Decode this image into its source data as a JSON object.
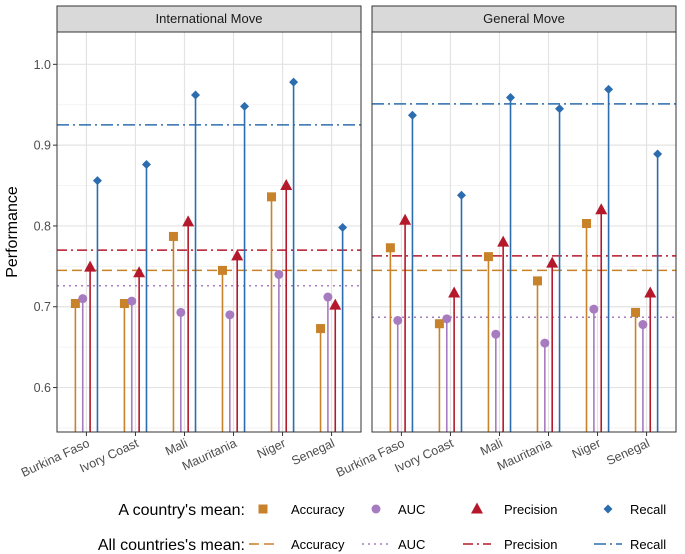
{
  "chart_data": {
    "type": "lollipop",
    "ylabel": "Performance",
    "ylim": [
      0.545,
      1.04
    ],
    "yticks": [
      0.6,
      0.7,
      0.8,
      0.9,
      1.0
    ],
    "ytick_labels": [
      "0.6",
      "0.7",
      "0.8",
      "0.9",
      "1.0"
    ],
    "grid": true,
    "categories": [
      "Burkina Faso",
      "Ivory Coast",
      "Mali",
      "Mauritania",
      "Niger",
      "Senegal"
    ],
    "metrics": [
      "Accuracy",
      "AUC",
      "Precision",
      "Recall"
    ],
    "colors": {
      "Accuracy": "#c8822a",
      "AUC": "#a77bbf",
      "Precision": "#b5182b",
      "Recall": "#2c6db0"
    },
    "panels": [
      {
        "title": "International Move",
        "series": [
          {
            "name": "Accuracy",
            "values": [
              0.704,
              0.704,
              0.787,
              0.745,
              0.836,
              0.673
            ]
          },
          {
            "name": "AUC",
            "values": [
              0.71,
              0.707,
              0.693,
              0.69,
              0.74,
              0.712
            ]
          },
          {
            "name": "Precision",
            "values": [
              0.749,
              0.742,
              0.805,
              0.763,
              0.85,
              0.702
            ]
          },
          {
            "name": "Recall",
            "values": [
              0.856,
              0.876,
              0.962,
              0.948,
              0.978,
              0.798
            ]
          }
        ],
        "means": {
          "Accuracy": 0.745,
          "AUC": 0.726,
          "Precision": 0.77,
          "Recall": 0.925
        }
      },
      {
        "title": "General Move",
        "series": [
          {
            "name": "Accuracy",
            "values": [
              0.773,
              0.679,
              0.762,
              0.732,
              0.803,
              0.693
            ]
          },
          {
            "name": "AUC",
            "values": [
              0.683,
              0.685,
              0.666,
              0.655,
              0.697,
              0.678
            ]
          },
          {
            "name": "Precision",
            "values": [
              0.807,
              0.717,
              0.78,
              0.754,
              0.82,
              0.717
            ]
          },
          {
            "name": "Recall",
            "values": [
              0.937,
              0.838,
              0.959,
              0.945,
              0.969,
              0.889
            ]
          }
        ],
        "means": {
          "Accuracy": 0.745,
          "AUC": 0.687,
          "Precision": 0.763,
          "Recall": 0.951
        }
      }
    ],
    "legend": {
      "row1_title": "A country's mean:",
      "row2_title": "All countries's mean:",
      "labels": [
        "Accuracy",
        "AUC",
        "Precision",
        "Recall"
      ]
    }
  }
}
